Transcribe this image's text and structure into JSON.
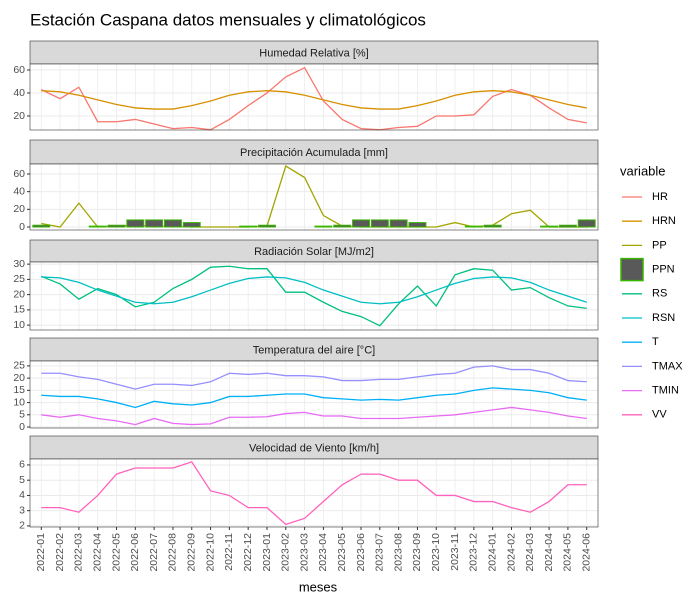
{
  "chart_data": {
    "type": "facet",
    "title": "Estación Caspana datos mensuales y climatológicos",
    "x_label": "meses",
    "legend_title": "variable",
    "grid": true,
    "categories": [
      "2022-01",
      "2022-02",
      "2022-03",
      "2022-04",
      "2022-05",
      "2022-06",
      "2022-07",
      "2022-08",
      "2022-09",
      "2022-10",
      "2022-11",
      "2022-12",
      "2023-01",
      "2023-02",
      "2023-03",
      "2023-04",
      "2023-05",
      "2023-06",
      "2023-07",
      "2023-08",
      "2023-09",
      "2023-10",
      "2023-11",
      "2023-12",
      "2024-01",
      "2024-02",
      "2024-03",
      "2024-04",
      "2024-05",
      "2024-06"
    ],
    "panels": [
      {
        "title": "Humedad Relativa [%]",
        "ylim": [
          7.8,
          65.2
        ],
        "yticks": [
          20,
          40,
          60
        ],
        "series": [
          {
            "name": "HR",
            "type": "line",
            "color": "#F8766D",
            "values": [
              43,
              35,
              45,
              15,
              15,
              17,
              13,
              9,
              10,
              8,
              17,
              29,
              40,
              54,
              62,
              33,
              17,
              9,
              8,
              10,
              11,
              20,
              20,
              21,
              37,
              43,
              38,
              27,
              17,
              14
            ]
          },
          {
            "name": "HRN",
            "type": "line",
            "color": "#D89000",
            "values": [
              42,
              41,
              38,
              34,
              30,
              27,
              26,
              26,
              29,
              33,
              38,
              41,
              42,
              41,
              38,
              34,
              30,
              27,
              26,
              26,
              29,
              33,
              38,
              41,
              42,
              41,
              38,
              34,
              30,
              27
            ]
          }
        ]
      },
      {
        "title": "Precipitación Acumulada [mm]",
        "ylim": [
          -3.4,
          71.3
        ],
        "yticks": [
          0,
          20,
          40,
          60
        ],
        "series": [
          {
            "name": "PP",
            "type": "line",
            "color": "#A3A500",
            "values": [
              4,
              0,
              27,
              0,
              1,
              2,
              1,
              1,
              0,
              0,
              0,
              0,
              1,
              69,
              56,
              13,
              1,
              0,
              0,
              0,
              0,
              0,
              5,
              0,
              2,
              15,
              19,
              0,
              0,
              0
            ]
          },
          {
            "name": "PPN",
            "type": "bar",
            "color": "#595959",
            "outline": "#39B600",
            "values": [
              2,
              0,
              0,
              1,
              2,
              8,
              8,
              8,
              5,
              0,
              0,
              1,
              2,
              0,
              0,
              1,
              2,
              8,
              8,
              8,
              5,
              0,
              0,
              1,
              2,
              0,
              0,
              1,
              2,
              8
            ]
          }
        ]
      },
      {
        "title": "Radiación Solar [MJ/m2]",
        "ylim": [
          8.4,
          30.7
        ],
        "yticks": [
          10,
          15,
          20,
          25,
          30
        ],
        "series": [
          {
            "name": "RS",
            "type": "line",
            "color": "#00BF7D",
            "values": [
              26,
              23.5,
              18.5,
              22,
              20,
              16,
              17.5,
              22,
              25,
              29,
              29.3,
              28.5,
              28.5,
              20.8,
              20.8,
              17.5,
              14.5,
              12.8,
              9.8,
              17,
              22.8,
              16.3,
              26.5,
              28.5,
              28,
              21.5,
              22.3,
              19,
              16.3,
              15.5
            ]
          },
          {
            "name": "RSN",
            "type": "line",
            "color": "#00BFC4",
            "values": [
              25.8,
              25.5,
              24,
              21.5,
              19.5,
              17.5,
              17,
              17.5,
              19.3,
              21.5,
              23.7,
              25.3,
              25.8,
              25.5,
              24,
              21.5,
              19.5,
              17.5,
              17,
              17.5,
              19.3,
              21.5,
              23.7,
              25.3,
              25.8,
              25.5,
              24,
              21.5,
              19.5,
              17.5
            ]
          }
        ]
      },
      {
        "title": "Temperatura del aire [°C]",
        "ylim": [
          -0.4,
          27
        ],
        "yticks": [
          0,
          5,
          10,
          15,
          20,
          25
        ],
        "series": [
          {
            "name": "T",
            "type": "line",
            "color": "#00B0F6",
            "values": [
              13,
              12.5,
              12.5,
              11.5,
              10,
              8,
              10.5,
              9.5,
              9,
              10,
              12.5,
              12.5,
              13,
              13.5,
              13.5,
              12,
              11.5,
              11,
              11.3,
              11,
              12,
              13,
              13.5,
              15,
              16,
              15.5,
              15,
              14,
              12,
              11
            ]
          },
          {
            "name": "TMAX",
            "type": "line",
            "color": "#9590FF",
            "values": [
              22,
              22,
              20.5,
              19.5,
              17.5,
              15.5,
              17.5,
              17.5,
              17,
              18.5,
              22,
              21.5,
              22,
              21,
              21,
              20.5,
              19,
              19,
              19.5,
              19.5,
              20.5,
              21.5,
              22,
              24.5,
              25,
              23.5,
              23.5,
              22,
              19,
              18.5
            ]
          },
          {
            "name": "TMIN",
            "type": "line",
            "color": "#E76BF3",
            "values": [
              5,
              4,
              5,
              3.5,
              2.5,
              1,
              3.5,
              1.5,
              1,
              1.3,
              4,
              4,
              4.2,
              5.5,
              6,
              4.5,
              4.5,
              3.5,
              3.5,
              3.5,
              4,
              4.5,
              5,
              6,
              7,
              8,
              7,
              6,
              4.5,
              3.5
            ]
          }
        ]
      },
      {
        "title": "Velocidad de Viento [km/h]",
        "ylim": [
          1.93,
          6.39
        ],
        "yticks": [
          2,
          3,
          4,
          5,
          6
        ],
        "series": [
          {
            "name": "VV",
            "type": "line",
            "color": "#FF62BC",
            "values": [
              3.2,
              3.2,
              2.9,
              4,
              5.4,
              5.8,
              5.8,
              5.8,
              6.2,
              4.3,
              4,
              3.2,
              3.2,
              2.1,
              2.5,
              3.6,
              4.7,
              5.4,
              5.4,
              5,
              5,
              4,
              4,
              3.6,
              3.6,
              3.2,
              2.9,
              3.6,
              4.7,
              4.7
            ]
          }
        ]
      }
    ]
  }
}
